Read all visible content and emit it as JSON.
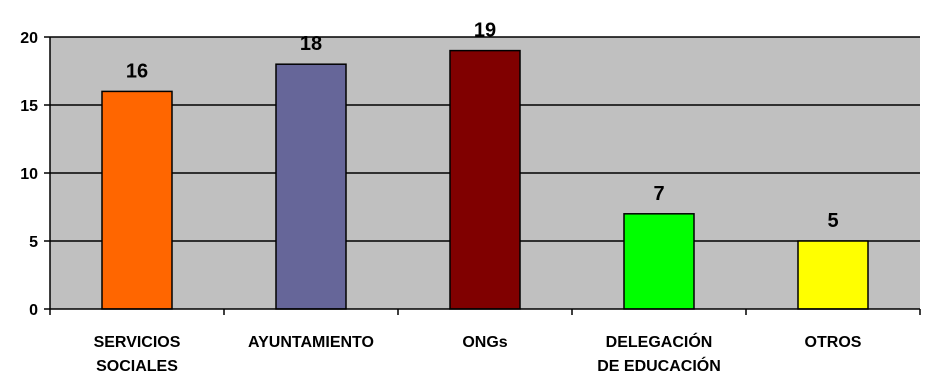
{
  "chart_data": {
    "type": "bar",
    "categories": [
      [
        "SERVICIOS",
        "SOCIALES"
      ],
      [
        "AYUNTAMIENTO"
      ],
      [
        "ONGs"
      ],
      [
        "DELEGACIÓN",
        "DE EDUCACIÓN"
      ],
      [
        "OTROS"
      ]
    ],
    "values": [
      16,
      18,
      19,
      7,
      5
    ],
    "colors": [
      "#FF6600",
      "#666699",
      "#800000",
      "#00FF00",
      "#FFFF00"
    ],
    "y_ticks": [
      0,
      5,
      10,
      15,
      20
    ],
    "ylim": [
      0,
      20
    ],
    "grid": true,
    "plot_background": "#C0C0C0",
    "bar_outline": "#000000",
    "data_labels": true
  }
}
